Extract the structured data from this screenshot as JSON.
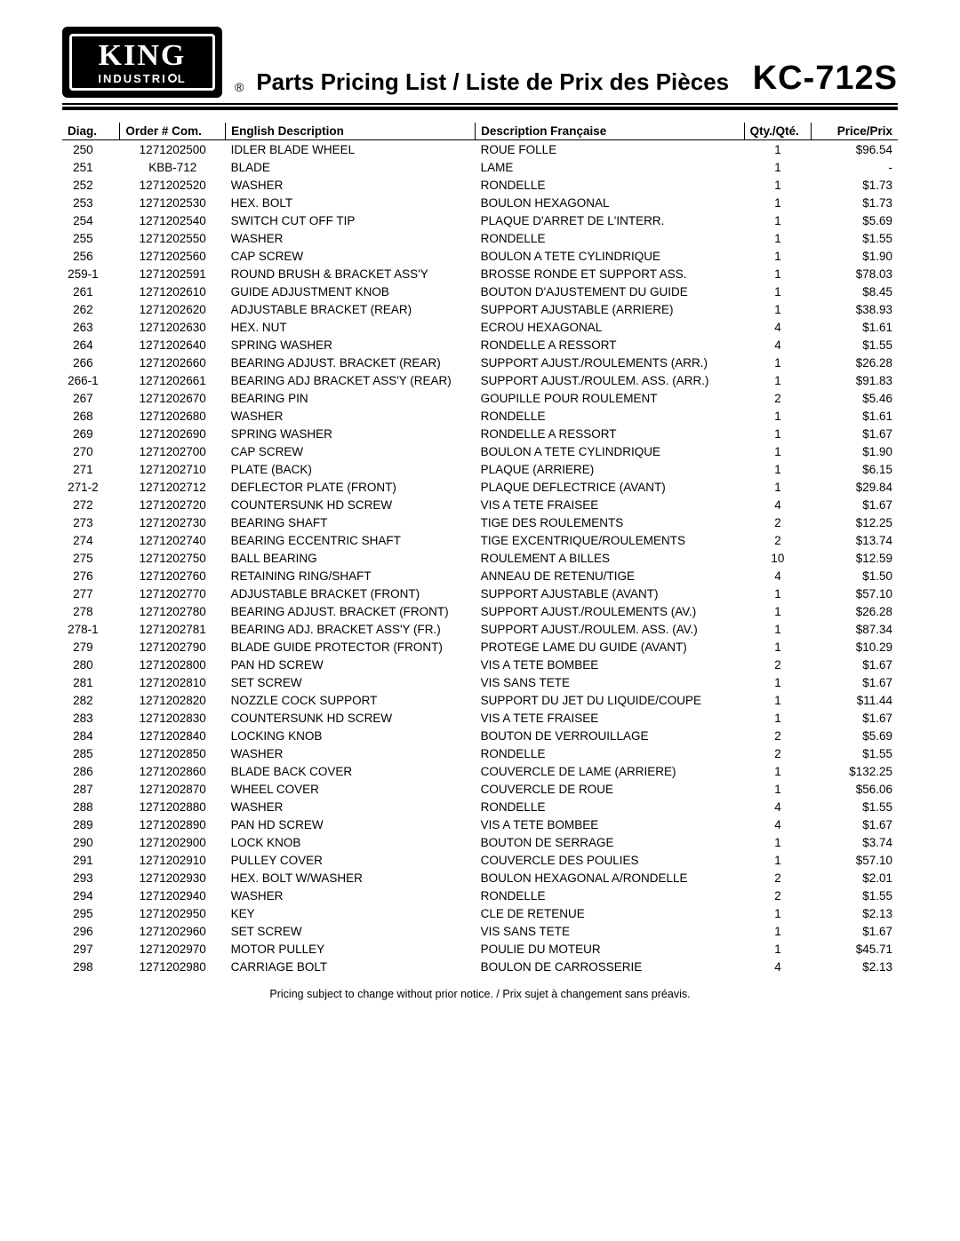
{
  "header": {
    "logo_top": "KING",
    "logo_bottom": "INDUSTRI",
    "logo_bottom_after": "L",
    "registered": "®",
    "title": "Parts Pricing List / Liste de Prix des Pièces",
    "model": "KC-712S"
  },
  "columns": {
    "diag": "Diag.",
    "order": "Order # Com.",
    "en": "English Description",
    "fr": "Description Française",
    "qty": "Qty./Qté.",
    "price": "Price/Prix"
  },
  "footnote": "Pricing subject to change without prior notice. / Prix sujet à changement sans préavis.",
  "rows": [
    {
      "diag": "250",
      "order": "1271202500",
      "en": "IDLER BLADE WHEEL",
      "fr": "ROUE FOLLE",
      "qty": "1",
      "price": "$96.54"
    },
    {
      "diag": "251",
      "order": "KBB-712",
      "en": "BLADE",
      "fr": "LAME",
      "qty": "1",
      "price": "-"
    },
    {
      "diag": "252",
      "order": "1271202520",
      "en": "WASHER",
      "fr": "RONDELLE",
      "qty": "1",
      "price": "$1.73"
    },
    {
      "diag": "253",
      "order": "1271202530",
      "en": "HEX. BOLT",
      "fr": "BOULON HEXAGONAL",
      "qty": "1",
      "price": "$1.73"
    },
    {
      "diag": "254",
      "order": "1271202540",
      "en": "SWITCH CUT OFF TIP",
      "fr": "PLAQUE D'ARRET DE L'INTERR.",
      "qty": "1",
      "price": "$5.69"
    },
    {
      "diag": "255",
      "order": "1271202550",
      "en": "WASHER",
      "fr": "RONDELLE",
      "qty": "1",
      "price": "$1.55"
    },
    {
      "diag": "256",
      "order": "1271202560",
      "en": "CAP SCREW",
      "fr": "BOULON A TETE CYLINDRIQUE",
      "qty": "1",
      "price": "$1.90"
    },
    {
      "diag": "259-1",
      "order": "1271202591",
      "en": "ROUND BRUSH & BRACKET ASS'Y",
      "fr": "BROSSE RONDE ET SUPPORT ASS.",
      "qty": "1",
      "price": "$78.03"
    },
    {
      "diag": "261",
      "order": "1271202610",
      "en": "GUIDE ADJUSTMENT KNOB",
      "fr": "BOUTON D'AJUSTEMENT DU GUIDE",
      "qty": "1",
      "price": "$8.45"
    },
    {
      "diag": "262",
      "order": "1271202620",
      "en": "ADJUSTABLE BRACKET (REAR)",
      "fr": "SUPPORT  AJUSTABLE (ARRIERE)",
      "qty": "1",
      "price": "$38.93"
    },
    {
      "diag": "263",
      "order": "1271202630",
      "en": "HEX. NUT",
      "fr": "ECROU HEXAGONAL",
      "qty": "4",
      "price": "$1.61"
    },
    {
      "diag": "264",
      "order": "1271202640",
      "en": "SPRING WASHER",
      "fr": "RONDELLE A RESSORT",
      "qty": "4",
      "price": "$1.55"
    },
    {
      "diag": "266",
      "order": "1271202660",
      "en": "BEARING ADJUST. BRACKET (REAR)",
      "fr": "SUPPORT AJUST./ROULEMENTS (ARR.)",
      "qty": "1",
      "price": "$26.28"
    },
    {
      "diag": "266-1",
      "order": "1271202661",
      "en": "BEARING ADJ BRACKET ASS'Y (REAR)",
      "fr": "SUPPORT AJUST./ROULEM. ASS. (ARR.)",
      "qty": "1",
      "price": "$91.83"
    },
    {
      "diag": "267",
      "order": "1271202670",
      "en": "BEARING PIN",
      "fr": "GOUPILLE POUR ROULEMENT",
      "qty": "2",
      "price": "$5.46"
    },
    {
      "diag": "268",
      "order": "1271202680",
      "en": "WASHER",
      "fr": "RONDELLE",
      "qty": "1",
      "price": "$1.61"
    },
    {
      "diag": "269",
      "order": "1271202690",
      "en": "SPRING WASHER",
      "fr": "RONDELLE A RESSORT",
      "qty": "1",
      "price": "$1.67"
    },
    {
      "diag": "270",
      "order": "1271202700",
      "en": "CAP SCREW",
      "fr": "BOULON A TETE CYLINDRIQUE",
      "qty": "1",
      "price": "$1.90"
    },
    {
      "diag": "271",
      "order": "1271202710",
      "en": "PLATE (BACK)",
      "fr": "PLAQUE (ARRIERE)",
      "qty": "1",
      "price": "$6.15"
    },
    {
      "diag": "271-2",
      "order": "1271202712",
      "en": "DEFLECTOR PLATE (FRONT)",
      "fr": "PLAQUE DEFLECTRICE (AVANT)",
      "qty": "1",
      "price": "$29.84"
    },
    {
      "diag": "272",
      "order": "1271202720",
      "en": "COUNTERSUNK HD SCREW",
      "fr": "VIS A TETE FRAISEE",
      "qty": "4",
      "price": "$1.67"
    },
    {
      "diag": "273",
      "order": "1271202730",
      "en": "BEARING SHAFT",
      "fr": "TIGE DES ROULEMENTS",
      "qty": "2",
      "price": "$12.25"
    },
    {
      "diag": "274",
      "order": "1271202740",
      "en": "BEARING ECCENTRIC SHAFT",
      "fr": "TIGE EXCENTRIQUE/ROULEMENTS",
      "qty": "2",
      "price": "$13.74"
    },
    {
      "diag": "275",
      "order": "1271202750",
      "en": "BALL BEARING",
      "fr": "ROULEMENT A BILLES",
      "qty": "10",
      "price": "$12.59"
    },
    {
      "diag": "276",
      "order": "1271202760",
      "en": "RETAINING RING/SHAFT",
      "fr": "ANNEAU DE RETENU/TIGE",
      "qty": "4",
      "price": "$1.50"
    },
    {
      "diag": "277",
      "order": "1271202770",
      "en": "ADJUSTABLE BRACKET (FRONT)",
      "fr": "SUPPORT AJUSTABLE (AVANT)",
      "qty": "1",
      "price": "$57.10"
    },
    {
      "diag": "278",
      "order": "1271202780",
      "en": "BEARING ADJUST. BRACKET (FRONT)",
      "fr": "SUPPORT AJUST./ROULEMENTS (AV.)",
      "qty": "1",
      "price": "$26.28"
    },
    {
      "diag": "278-1",
      "order": "1271202781",
      "en": "BEARING ADJ. BRACKET ASS'Y (FR.)",
      "fr": "SUPPORT AJUST./ROULEM. ASS. (AV.)",
      "qty": "1",
      "price": "$87.34"
    },
    {
      "diag": "279",
      "order": "1271202790",
      "en": "BLADE GUIDE PROTECTOR  (FRONT)",
      "fr": "PROTEGE LAME DU GUIDE (AVANT)",
      "qty": "1",
      "price": "$10.29"
    },
    {
      "diag": "280",
      "order": "1271202800",
      "en": "PAN HD SCREW",
      "fr": "VIS A TETE BOMBEE",
      "qty": "2",
      "price": "$1.67"
    },
    {
      "diag": "281",
      "order": "1271202810",
      "en": "SET SCREW",
      "fr": "VIS SANS TETE",
      "qty": "1",
      "price": "$1.67"
    },
    {
      "diag": "282",
      "order": "1271202820",
      "en": "NOZZLE COCK SUPPORT",
      "fr": "SUPPORT DU JET DU LIQUIDE/COUPE",
      "qty": "1",
      "price": "$11.44"
    },
    {
      "diag": "283",
      "order": "1271202830",
      "en": "COUNTERSUNK HD SCREW",
      "fr": "VIS A TETE FRAISEE",
      "qty": "1",
      "price": "$1.67"
    },
    {
      "diag": "284",
      "order": "1271202840",
      "en": "LOCKING KNOB",
      "fr": "BOUTON DE VERROUILLAGE",
      "qty": "2",
      "price": "$5.69"
    },
    {
      "diag": "285",
      "order": "1271202850",
      "en": "WASHER",
      "fr": "RONDELLE",
      "qty": "2",
      "price": "$1.55"
    },
    {
      "diag": "286",
      "order": "1271202860",
      "en": "BLADE BACK COVER",
      "fr": "COUVERCLE DE LAME (ARRIERE)",
      "qty": "1",
      "price": "$132.25"
    },
    {
      "diag": "287",
      "order": "1271202870",
      "en": "WHEEL COVER",
      "fr": "COUVERCLE DE ROUE",
      "qty": "1",
      "price": "$56.06"
    },
    {
      "diag": "288",
      "order": "1271202880",
      "en": "WASHER",
      "fr": "RONDELLE",
      "qty": "4",
      "price": "$1.55"
    },
    {
      "diag": "289",
      "order": "1271202890",
      "en": "PAN HD SCREW",
      "fr": "VIS A TETE BOMBEE",
      "qty": "4",
      "price": "$1.67"
    },
    {
      "diag": "290",
      "order": "1271202900",
      "en": "LOCK KNOB",
      "fr": "BOUTON DE SERRAGE",
      "qty": "1",
      "price": "$3.74"
    },
    {
      "diag": "291",
      "order": "1271202910",
      "en": "PULLEY COVER",
      "fr": "COUVERCLE DES POULIES",
      "qty": "1",
      "price": "$57.10"
    },
    {
      "diag": "293",
      "order": "1271202930",
      "en": "HEX. BOLT W/WASHER",
      "fr": "BOULON HEXAGONAL A/RONDELLE",
      "qty": "2",
      "price": "$2.01"
    },
    {
      "diag": "294",
      "order": "1271202940",
      "en": "WASHER",
      "fr": "RONDELLE",
      "qty": "2",
      "price": "$1.55"
    },
    {
      "diag": "295",
      "order": "1271202950",
      "en": "KEY",
      "fr": "CLE DE RETENUE",
      "qty": "1",
      "price": "$2.13"
    },
    {
      "diag": "296",
      "order": "1271202960",
      "en": "SET SCREW",
      "fr": "VIS SANS TETE",
      "qty": "1",
      "price": "$1.67"
    },
    {
      "diag": "297",
      "order": "1271202970",
      "en": "MOTOR PULLEY",
      "fr": "POULIE DU MOTEUR",
      "qty": "1",
      "price": "$45.71"
    },
    {
      "diag": "298",
      "order": "1271202980",
      "en": "CARRIAGE BOLT",
      "fr": "BOULON DE CARROSSERIE",
      "qty": "4",
      "price": "$2.13"
    }
  ]
}
